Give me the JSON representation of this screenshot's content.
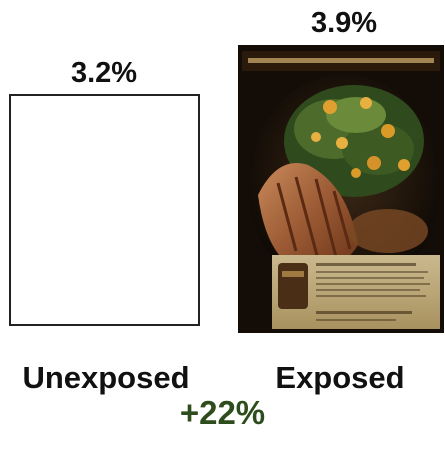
{
  "chart_data": {
    "type": "bar",
    "categories": [
      "Unexposed",
      "Exposed"
    ],
    "values": [
      3.2,
      3.9
    ],
    "value_labels": [
      "3.2%",
      "3.9%"
    ],
    "lift_label": "+22%",
    "colors": {
      "lift_text": "#2e4d1c",
      "box_border": "#222222",
      "text": "#111111"
    }
  }
}
